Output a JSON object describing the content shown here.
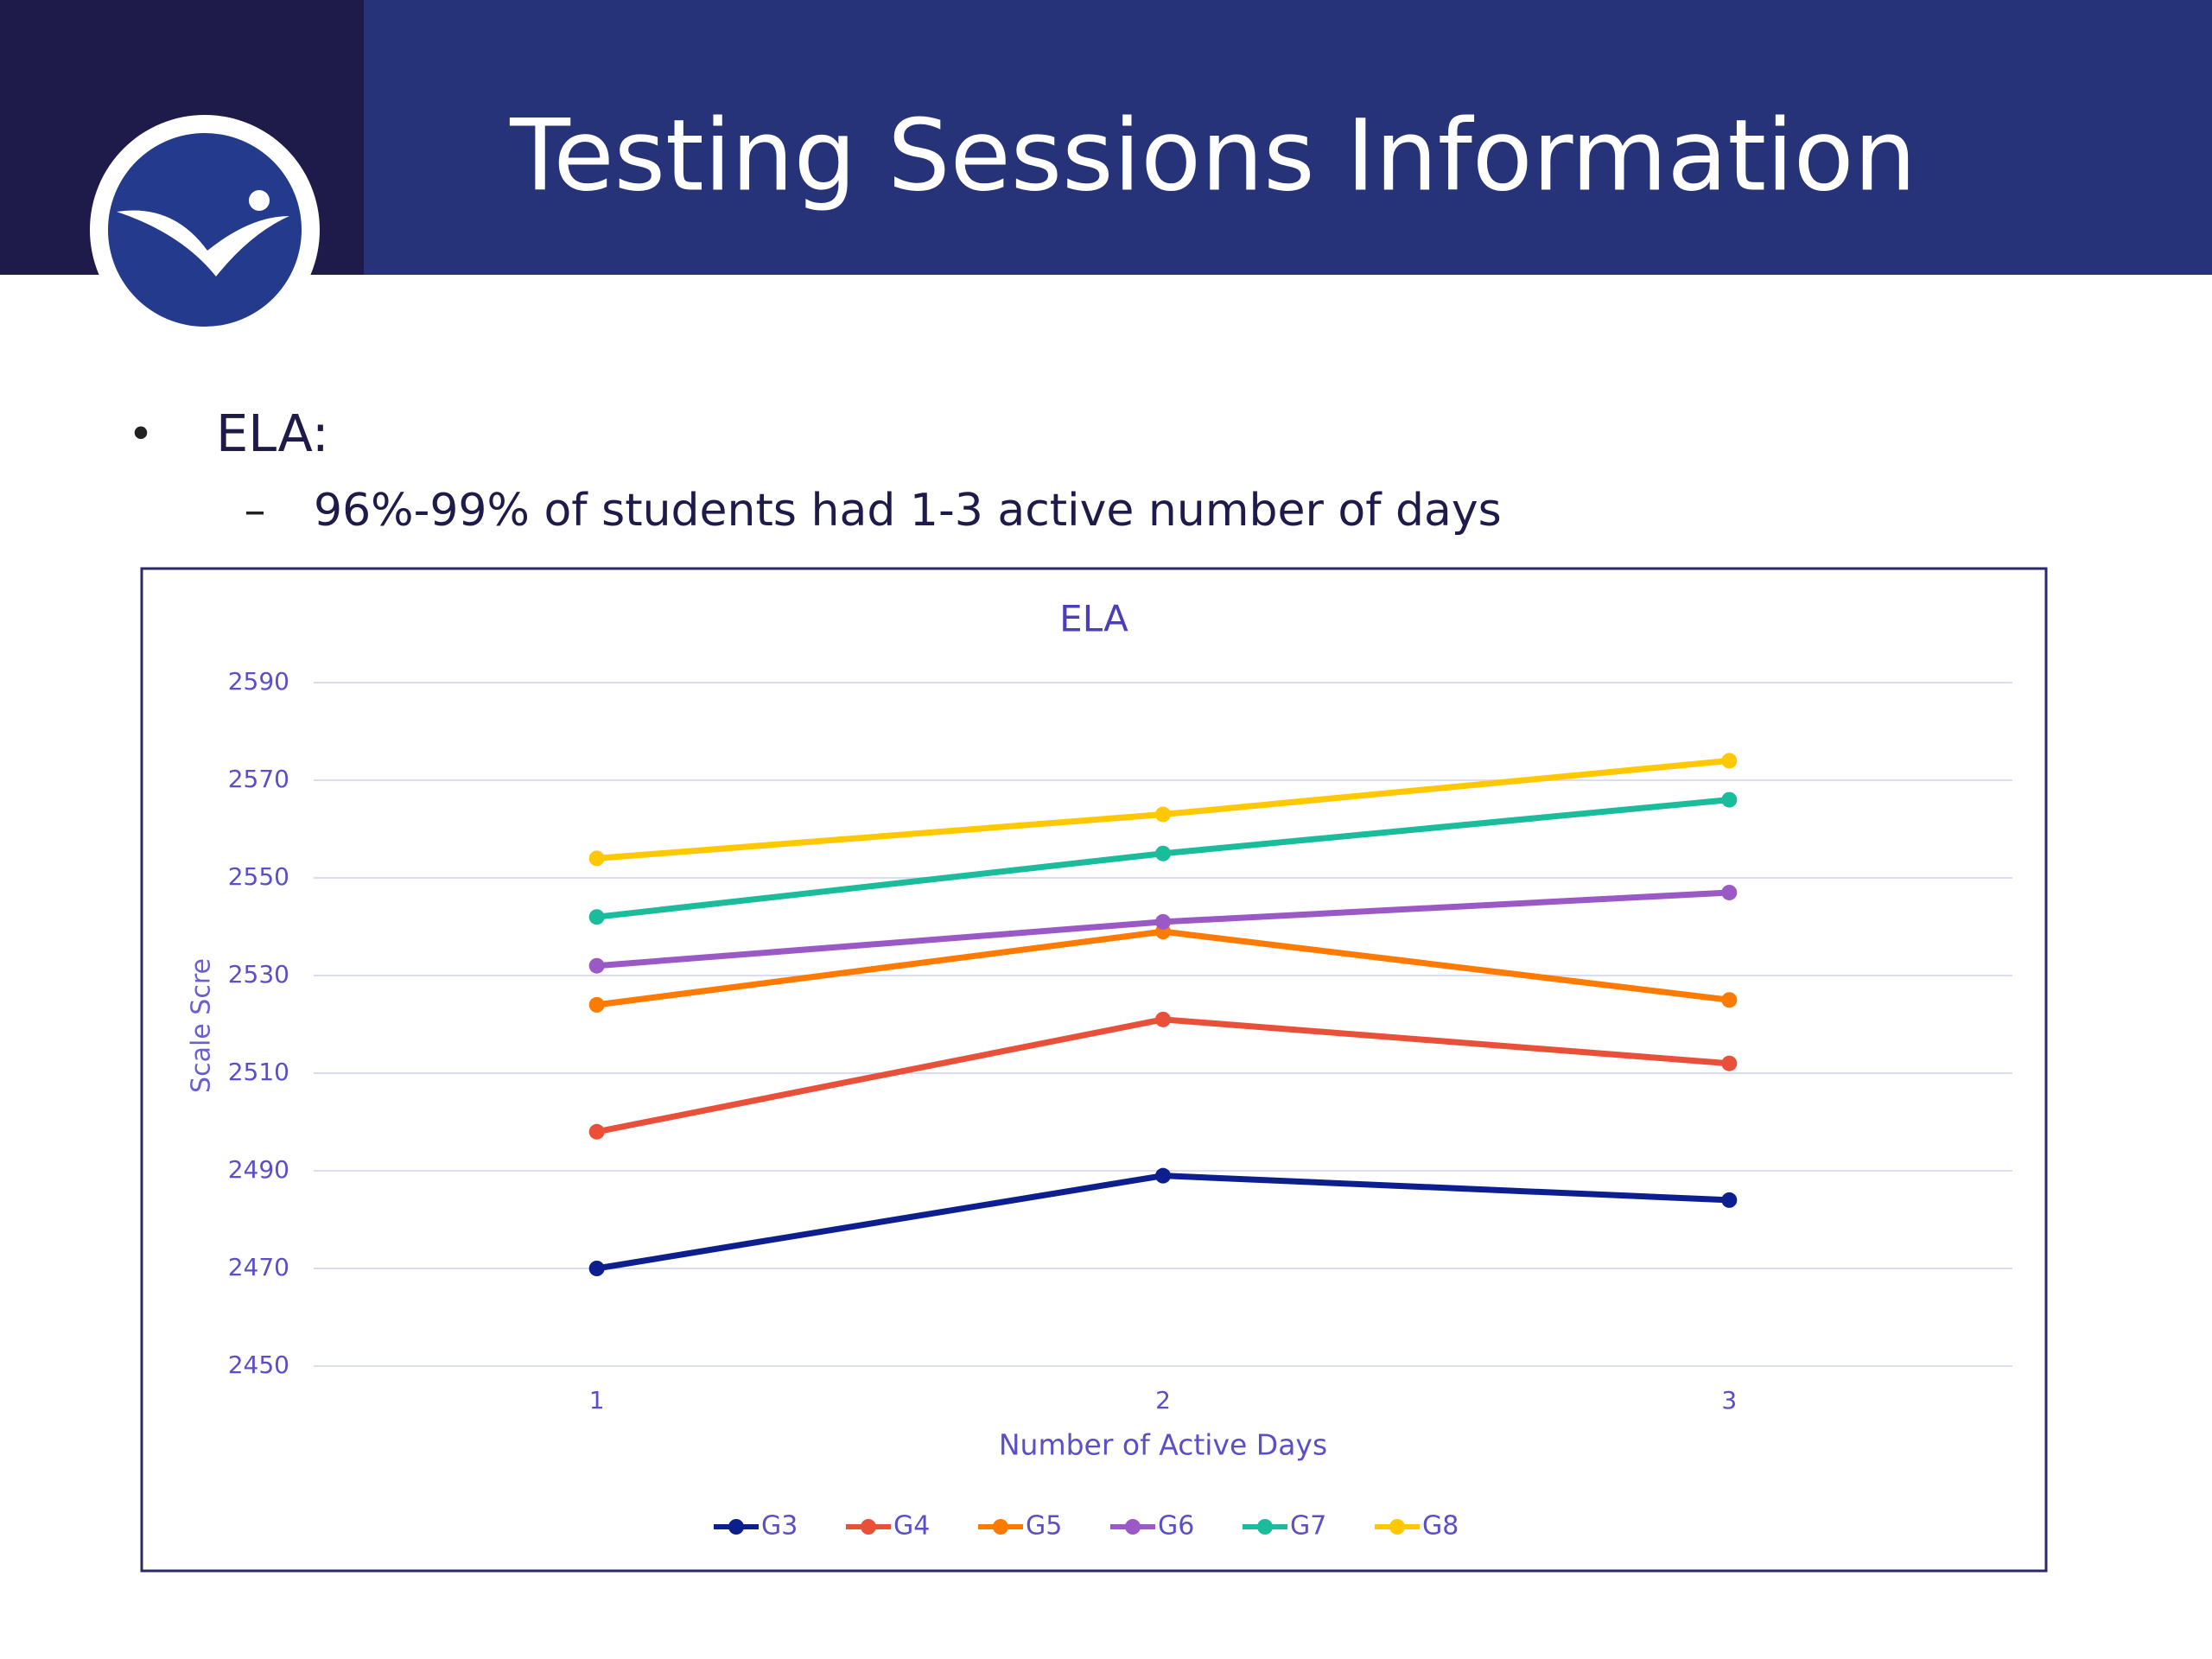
{
  "slide": {
    "title": "Testing Sessions Information",
    "bullet": "ELA:",
    "sub_bullet": "96%-99% of students had 1-3 active number of days"
  },
  "chart_data": {
    "type": "line",
    "title": "ELA",
    "x_label": "Number of Active Days",
    "y_label": "Scale Scre",
    "categories": [
      "1",
      "2",
      "3"
    ],
    "series": [
      {
        "name": "G3",
        "color": "#0d1f8e",
        "values": [
          2470,
          2489,
          2484
        ]
      },
      {
        "name": "G4",
        "color": "#e8503a",
        "values": [
          2498,
          2521,
          2512
        ]
      },
      {
        "name": "G5",
        "color": "#ff7a00",
        "values": [
          2524,
          2539,
          2525
        ]
      },
      {
        "name": "G6",
        "color": "#9b59c6",
        "values": [
          2532,
          2541,
          2547
        ]
      },
      {
        "name": "G7",
        "color": "#1abc9c",
        "values": [
          2542,
          2555,
          2566
        ]
      },
      {
        "name": "G8",
        "color": "#ffc800",
        "values": [
          2554,
          2563,
          2574
        ]
      }
    ],
    "ylim": [
      2450,
      2590
    ],
    "yticks": [
      2450,
      2470,
      2490,
      2510,
      2530,
      2550,
      2570,
      2590
    ],
    "grid": true,
    "legend": "bottom"
  }
}
